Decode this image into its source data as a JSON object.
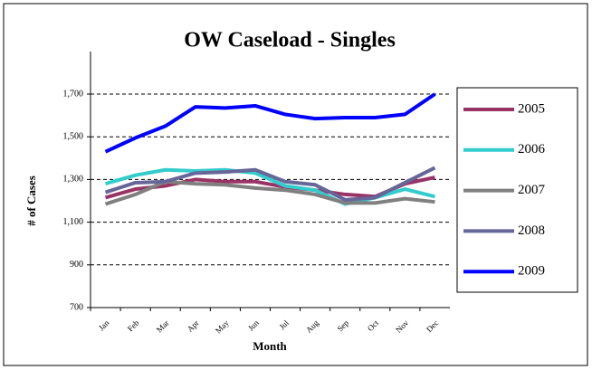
{
  "chart_data": {
    "type": "line",
    "title": "OW Caseload - Singles",
    "x_label": "Month",
    "y_label": "# of Cases",
    "categories": [
      "Jan",
      "Feb",
      "Mar",
      "Apr",
      "May",
      "Jun",
      "Jul",
      "Aug",
      "Sep",
      "Oct",
      "Nov",
      "Dec"
    ],
    "series": [
      {
        "name": "2005",
        "color": "#993366",
        "values": [
          1215,
          1255,
          1270,
          1300,
          1290,
          1290,
          1265,
          1250,
          1230,
          1220,
          1280,
          1310
        ]
      },
      {
        "name": "2006",
        "color": "#33cccc",
        "values": [
          1280,
          1320,
          1345,
          1340,
          1345,
          1330,
          1270,
          1250,
          1185,
          1215,
          1255,
          1220
        ]
      },
      {
        "name": "2007",
        "color": "#808080",
        "values": [
          1185,
          1230,
          1290,
          1280,
          1275,
          1260,
          1250,
          1230,
          1190,
          1190,
          1210,
          1195
        ]
      },
      {
        "name": "2008",
        "color": "#666699",
        "values": [
          1240,
          1285,
          1290,
          1330,
          1335,
          1345,
          1290,
          1275,
          1205,
          1215,
          1285,
          1355
        ]
      },
      {
        "name": "2009",
        "color": "#0000ff",
        "values": [
          1430,
          1495,
          1550,
          1640,
          1635,
          1645,
          1605,
          1585,
          1590,
          1590,
          1605,
          1700
        ]
      }
    ],
    "ylim": [
      700,
      1700
    ],
    "yticks": [
      700,
      900,
      {
        "value": 1100,
        "label": "1,100"
      },
      {
        "value": 1300,
        "label": "1,300"
      },
      {
        "value": 1500,
        "label": "1,500"
      },
      {
        "value": 1700,
        "label": "1,700"
      }
    ],
    "grid": true,
    "legend": "right"
  }
}
